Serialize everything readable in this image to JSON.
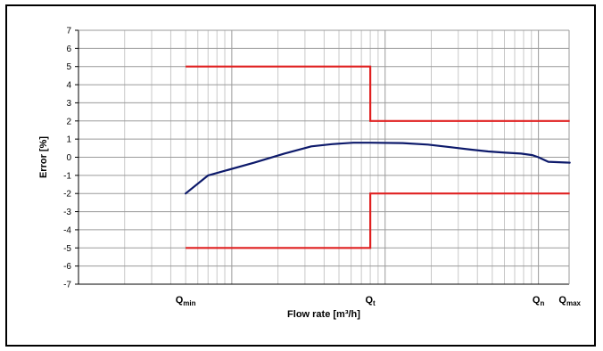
{
  "chart_data": {
    "type": "line",
    "xlabel": "Flow rate [m³/h]",
    "ylabel": "Error [%]",
    "ylim": [
      -7,
      7
    ],
    "yticks": [
      7,
      6,
      5,
      4,
      3,
      2,
      1,
      0,
      -1,
      -2,
      -3,
      -4,
      -5,
      -6,
      -7
    ],
    "x_scale": "log",
    "x_markers": [
      {
        "main": "Q",
        "sub": "min"
      },
      {
        "main": "Q",
        "sub": "t"
      },
      {
        "main": "Q",
        "sub": "n"
      },
      {
        "main": "Q",
        "sub": "max"
      }
    ],
    "grid": true,
    "series": [
      {
        "role": "error-curve",
        "color": "#0d1a6b",
        "points": [
          {
            "x": "Qmin",
            "y": -2.0
          },
          {
            "x": 0.07,
            "y": -1.0
          },
          {
            "x": 0.14,
            "y": -0.3
          },
          {
            "x": 0.22,
            "y": 0.2
          },
          {
            "x": 0.33,
            "y": 0.6
          },
          {
            "x": 0.45,
            "y": 0.72
          },
          {
            "x": 0.62,
            "y": 0.8
          },
          {
            "x": "Qt",
            "y": 0.8
          },
          {
            "x": 1.3,
            "y": 0.78
          },
          {
            "x": 1.9,
            "y": 0.7
          },
          {
            "x": 2.7,
            "y": 0.55
          },
          {
            "x": 3.6,
            "y": 0.42
          },
          {
            "x": 4.7,
            "y": 0.32
          },
          {
            "x": 6.1,
            "y": 0.25
          },
          {
            "x": 7.7,
            "y": 0.2
          },
          {
            "x": 9.1,
            "y": 0.12
          },
          {
            "x": "Qn",
            "y": 0.0
          },
          {
            "x": 10.7,
            "y": -0.12
          },
          {
            "x": 11.6,
            "y": -0.25
          },
          {
            "x": "Qmax",
            "y": -0.3
          }
        ]
      },
      {
        "role": "upper-limit",
        "color": "#e02020",
        "points": [
          {
            "x": "Qmin",
            "y": 5
          },
          {
            "x": "Qt",
            "y": 5
          },
          {
            "x": "Qt",
            "y": 2
          },
          {
            "x": "Qmax",
            "y": 2
          }
        ]
      },
      {
        "role": "lower-limit",
        "color": "#e02020",
        "points": [
          {
            "x": "Qmin",
            "y": -5
          },
          {
            "x": "Qt",
            "y": -5
          },
          {
            "x": "Qt",
            "y": -2
          },
          {
            "x": "Qmax",
            "y": -2
          }
        ]
      }
    ]
  }
}
